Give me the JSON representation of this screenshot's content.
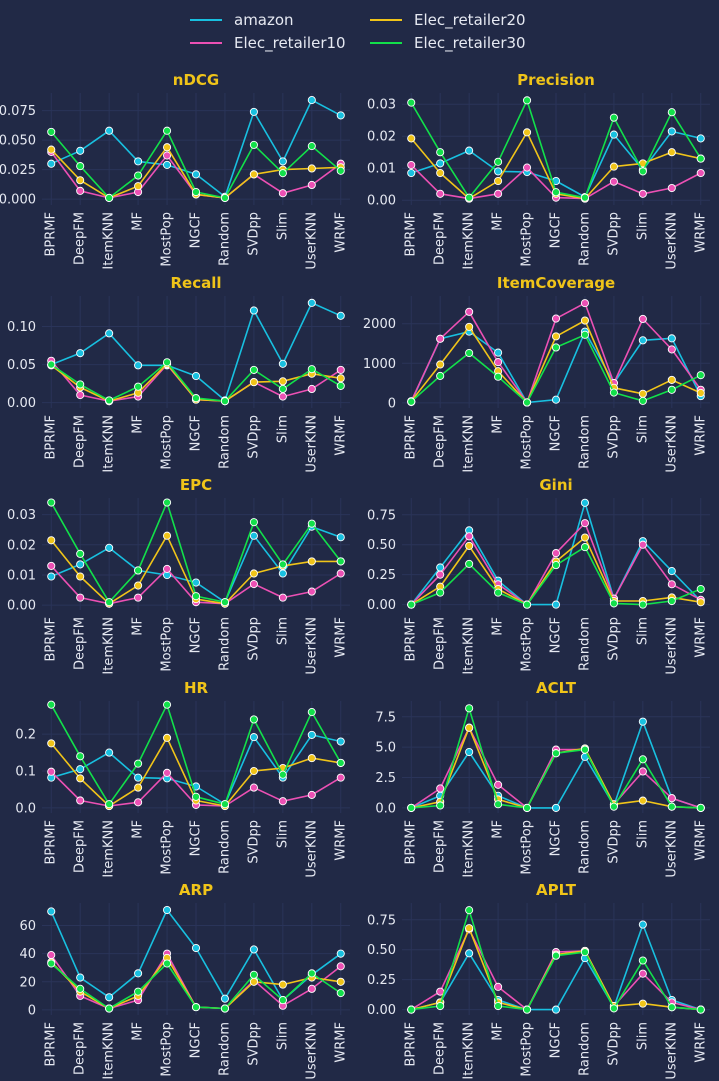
{
  "chart_data": {
    "type": "line",
    "categories": [
      "BPRMF",
      "DeepFM",
      "ItemKNN",
      "MF",
      "MostPop",
      "NGCF",
      "Random",
      "SVDpp",
      "Slim",
      "UserKNN",
      "WRMF"
    ],
    "series_meta": [
      {
        "name": "amazon",
        "color": "#18c0e0"
      },
      {
        "name": "Elec_retailer10",
        "color": "#ec50b4"
      },
      {
        "name": "Elec_retailer20",
        "color": "#f0c419"
      },
      {
        "name": "Elec_retailer30",
        "color": "#12e04a"
      }
    ],
    "panels": [
      {
        "title": "nDCG",
        "ylim": [
          -0.005,
          0.09
        ],
        "yticks": [
          "0.000",
          "0.025",
          "0.050",
          "0.075"
        ],
        "series": [
          {
            "name": "amazon",
            "values": [
              0.03,
              0.041,
              0.058,
              0.032,
              0.029,
              0.021,
              0.002,
              0.074,
              0.032,
              0.084,
              0.071
            ]
          },
          {
            "name": "Elec_retailer10",
            "values": [
              0.04,
              0.007,
              0.001,
              0.006,
              0.037,
              0.004,
              0.001,
              0.021,
              0.005,
              0.012,
              0.03
            ]
          },
          {
            "name": "Elec_retailer20",
            "values": [
              0.042,
              0.016,
              0.001,
              0.011,
              0.044,
              0.004,
              0.001,
              0.021,
              0.025,
              0.026,
              0.027
            ]
          },
          {
            "name": "Elec_retailer30",
            "values": [
              0.057,
              0.028,
              0.001,
              0.02,
              0.058,
              0.006,
              0.001,
              0.046,
              0.022,
              0.045,
              0.024
            ]
          }
        ]
      },
      {
        "title": "Precision",
        "ylim": [
          -0.0015,
          0.0335
        ],
        "yticks": [
          "0.00",
          "0.01",
          "0.02",
          "0.03"
        ],
        "series": [
          {
            "name": "amazon",
            "values": [
              0.0085,
              0.0115,
              0.0155,
              0.009,
              0.0088,
              0.006,
              0.001,
              0.0205,
              0.0095,
              0.0215,
              0.0193
            ]
          },
          {
            "name": "Elec_retailer10",
            "values": [
              0.011,
              0.002,
              0.0005,
              0.002,
              0.0102,
              0.0008,
              0.0005,
              0.0058,
              0.002,
              0.0038,
              0.0085
            ]
          },
          {
            "name": "Elec_retailer20",
            "values": [
              0.0193,
              0.0085,
              0.0005,
              0.006,
              0.0212,
              0.002,
              0.0005,
              0.0105,
              0.0115,
              0.015,
              0.013
            ]
          },
          {
            "name": "Elec_retailer30",
            "values": [
              0.0305,
              0.015,
              0.0008,
              0.012,
              0.0312,
              0.0025,
              0.0008,
              0.0258,
              0.009,
              0.0275,
              0.013
            ]
          }
        ]
      },
      {
        "title": "Recall",
        "ylim": [
          -0.007,
          0.14
        ],
        "yticks": [
          "0.00",
          "0.05",
          "0.10"
        ],
        "series": [
          {
            "name": "amazon",
            "values": [
              0.05,
              0.065,
              0.091,
              0.049,
              0.049,
              0.035,
              0.003,
              0.121,
              0.051,
              0.131,
              0.114
            ]
          },
          {
            "name": "Elec_retailer10",
            "values": [
              0.055,
              0.01,
              0.002,
              0.008,
              0.05,
              0.004,
              0.002,
              0.027,
              0.008,
              0.018,
              0.043
            ]
          },
          {
            "name": "Elec_retailer20",
            "values": [
              0.049,
              0.02,
              0.002,
              0.013,
              0.051,
              0.004,
              0.002,
              0.027,
              0.028,
              0.038,
              0.032
            ]
          },
          {
            "name": "Elec_retailer30",
            "values": [
              0.05,
              0.024,
              0.003,
              0.021,
              0.053,
              0.006,
              0.002,
              0.043,
              0.018,
              0.044,
              0.022
            ]
          }
        ]
      },
      {
        "title": "ItemCoverage",
        "ylim": [
          -130,
          2700
        ],
        "yticks": [
          "0",
          "1000",
          "2000"
        ],
        "series": [
          {
            "name": "amazon",
            "values": [
              20,
              1620,
              1800,
              1270,
              10,
              80,
              1800,
              500,
              1580,
              1630,
              170
            ]
          },
          {
            "name": "Elec_retailer10",
            "values": [
              40,
              1620,
              2300,
              1030,
              10,
              2130,
              2520,
              500,
              2120,
              1350,
              330
            ]
          },
          {
            "name": "Elec_retailer20",
            "values": [
              40,
              970,
              1920,
              800,
              10,
              1680,
              2080,
              380,
              230,
              580,
              250
            ]
          },
          {
            "name": "Elec_retailer30",
            "values": [
              30,
              680,
              1260,
              660,
              10,
              1400,
              1720,
              260,
              50,
              330,
              700
            ]
          }
        ]
      },
      {
        "title": "EPC",
        "ylim": [
          -0.0016,
          0.0355
        ],
        "yticks": [
          "0.00",
          "0.01",
          "0.02",
          "0.03"
        ],
        "series": [
          {
            "name": "amazon",
            "values": [
              0.0095,
              0.0135,
              0.019,
              0.0115,
              0.01,
              0.0075,
              0.001,
              0.023,
              0.0105,
              0.026,
              0.0225
            ]
          },
          {
            "name": "Elec_retailer10",
            "values": [
              0.013,
              0.0025,
              0.0005,
              0.0025,
              0.012,
              0.001,
              0.0005,
              0.007,
              0.0025,
              0.0045,
              0.0105
            ]
          },
          {
            "name": "Elec_retailer20",
            "values": [
              0.0215,
              0.0095,
              0.0005,
              0.0065,
              0.023,
              0.002,
              0.0005,
              0.0105,
              0.013,
              0.0145,
              0.0145
            ]
          },
          {
            "name": "Elec_retailer30",
            "values": [
              0.034,
              0.017,
              0.001,
              0.0115,
              0.034,
              0.003,
              0.001,
              0.0275,
              0.0135,
              0.027,
              0.0145
            ]
          }
        ]
      },
      {
        "title": "Gini",
        "ylim": [
          -0.045,
          0.89
        ],
        "yticks": [
          "0.00",
          "0.25",
          "0.50",
          "0.75"
        ],
        "series": [
          {
            "name": "amazon",
            "values": [
              0.0,
              0.31,
              0.62,
              0.2,
              0.0,
              0.0,
              0.85,
              0.05,
              0.53,
              0.28,
              0.03
            ]
          },
          {
            "name": "Elec_retailer10",
            "values": [
              0.0,
              0.25,
              0.57,
              0.17,
              0.0,
              0.43,
              0.68,
              0.05,
              0.5,
              0.17,
              0.04
            ]
          },
          {
            "name": "Elec_retailer20",
            "values": [
              0.0,
              0.15,
              0.49,
              0.13,
              0.0,
              0.36,
              0.56,
              0.03,
              0.03,
              0.06,
              0.02
            ]
          },
          {
            "name": "Elec_retailer30",
            "values": [
              0.0,
              0.1,
              0.34,
              0.1,
              0.0,
              0.33,
              0.48,
              0.01,
              0.0,
              0.03,
              0.13
            ]
          }
        ]
      },
      {
        "title": "HR",
        "ylim": [
          -0.014,
          0.29
        ],
        "yticks": [
          "0.0",
          "0.1",
          "0.2"
        ],
        "series": [
          {
            "name": "amazon",
            "values": [
              0.082,
              0.105,
              0.15,
              0.082,
              0.08,
              0.058,
              0.01,
              0.192,
              0.082,
              0.198,
              0.18
            ]
          },
          {
            "name": "Elec_retailer10",
            "values": [
              0.098,
              0.02,
              0.005,
              0.015,
              0.095,
              0.008,
              0.005,
              0.055,
              0.018,
              0.035,
              0.082
            ]
          },
          {
            "name": "Elec_retailer20",
            "values": [
              0.175,
              0.08,
              0.005,
              0.055,
              0.19,
              0.02,
              0.005,
              0.1,
              0.108,
              0.135,
              0.122
            ]
          },
          {
            "name": "Elec_retailer30",
            "values": [
              0.28,
              0.14,
              0.01,
              0.12,
              0.28,
              0.03,
              0.01,
              0.24,
              0.09,
              0.26,
              0.122
            ]
          }
        ]
      },
      {
        "title": "ACLT",
        "ylim": [
          -0.42,
          8.8
        ],
        "yticks": [
          "0.0",
          "2.5",
          "5.0",
          "7.5"
        ],
        "series": [
          {
            "name": "amazon",
            "values": [
              0.0,
              1.0,
              4.6,
              1.0,
              0.0,
              0.0,
              4.2,
              0.2,
              7.1,
              0.8,
              0.0
            ]
          },
          {
            "name": "Elec_retailer10",
            "values": [
              0.0,
              1.6,
              6.6,
              1.9,
              0.0,
              4.8,
              4.8,
              0.3,
              3.0,
              0.8,
              0.0
            ]
          },
          {
            "name": "Elec_retailer20",
            "values": [
              0.0,
              0.5,
              6.6,
              0.7,
              0.0,
              4.5,
              4.9,
              0.3,
              0.6,
              0.1,
              0.0
            ]
          },
          {
            "name": "Elec_retailer30",
            "values": [
              0.0,
              0.2,
              8.2,
              0.3,
              0.0,
              4.5,
              4.8,
              0.1,
              4.0,
              0.1,
              0.0
            ]
          }
        ]
      },
      {
        "title": "ARP",
        "ylim": [
          -3.6,
          76
        ],
        "yticks": [
          "0",
          "20",
          "40",
          "60"
        ],
        "series": [
          {
            "name": "amazon",
            "values": [
              70,
              23,
              9,
              26,
              71,
              44,
              8,
              43,
              7,
              25,
              40
            ]
          },
          {
            "name": "Elec_retailer10",
            "values": [
              39,
              10,
              1,
              7,
              40,
              2,
              1,
              21,
              3,
              15,
              31
            ]
          },
          {
            "name": "Elec_retailer20",
            "values": [
              34,
              13,
              1,
              10,
              37,
              2,
              1,
              20,
              18,
              23,
              20
            ]
          },
          {
            "name": "Elec_retailer30",
            "values": [
              33,
              15,
              1,
              13,
              33,
              2,
              1,
              25,
              7,
              26,
              12
            ]
          }
        ]
      },
      {
        "title": "APLT",
        "ylim": [
          -0.045,
          0.89
        ],
        "yticks": [
          "0.00",
          "0.25",
          "0.50",
          "0.75"
        ],
        "series": [
          {
            "name": "amazon",
            "values": [
              0.0,
              0.06,
              0.47,
              0.08,
              0.0,
              0.0,
              0.43,
              0.02,
              0.71,
              0.08,
              0.0
            ]
          },
          {
            "name": "Elec_retailer10",
            "values": [
              0.0,
              0.15,
              0.67,
              0.19,
              0.0,
              0.48,
              0.49,
              0.03,
              0.3,
              0.06,
              0.0
            ]
          },
          {
            "name": "Elec_retailer20",
            "values": [
              0.0,
              0.06,
              0.68,
              0.06,
              0.0,
              0.46,
              0.49,
              0.03,
              0.05,
              0.02,
              0.0
            ]
          },
          {
            "name": "Elec_retailer30",
            "values": [
              0.0,
              0.03,
              0.83,
              0.03,
              0.0,
              0.45,
              0.48,
              0.01,
              0.41,
              0.02,
              0.0
            ]
          }
        ]
      }
    ]
  }
}
